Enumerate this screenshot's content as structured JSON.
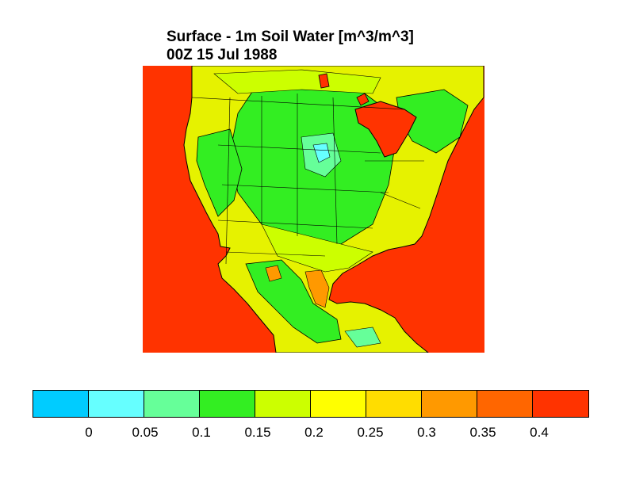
{
  "title": {
    "line1": "Surface - 1m Soil Water [m^3/m^3]",
    "line2": "00Z 15 Jul 1988"
  },
  "map": {
    "region": "North America",
    "ocean_color": "#ff3300"
  },
  "colorbar": {
    "colors": [
      "#00ccff",
      "#66ffff",
      "#66ff99",
      "#33ee22",
      "#ccff00",
      "#ffff00",
      "#ffdd00",
      "#ff9900",
      "#ff6600",
      "#ff3300"
    ],
    "labels": [
      "0",
      "0.05",
      "0.1",
      "0.15",
      "0.2",
      "0.25",
      "0.3",
      "0.35",
      "0.4"
    ]
  }
}
